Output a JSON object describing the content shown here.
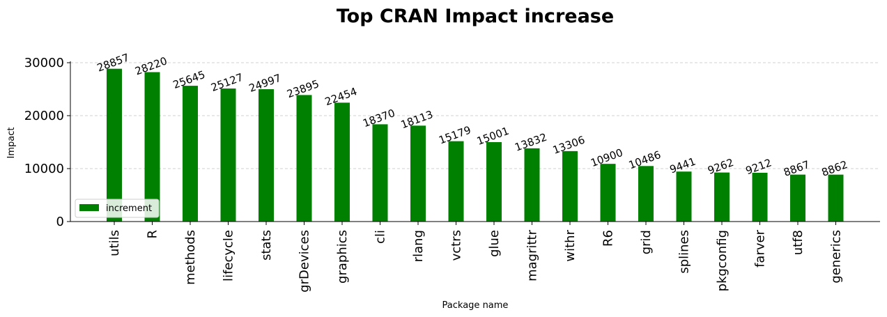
{
  "chart_data": {
    "type": "bar",
    "title": "Top CRAN Impact increase",
    "xlabel": "Package name",
    "ylabel": "Impact",
    "categories": [
      "utils",
      "R",
      "methods",
      "lifecycle",
      "stats",
      "grDevices",
      "graphics",
      "cli",
      "rlang",
      "vctrs",
      "glue",
      "magrittr",
      "withr",
      "R6",
      "grid",
      "splines",
      "pkgconfig",
      "farver",
      "utf8",
      "generics"
    ],
    "series": [
      {
        "name": "increment",
        "values": [
          28857,
          28220,
          25645,
          25127,
          24997,
          23895,
          22454,
          18370,
          18113,
          15179,
          15001,
          13832,
          13306,
          10900,
          10486,
          9441,
          9262,
          9212,
          8867,
          8862
        ]
      }
    ],
    "yticks": [
      0,
      10000,
      20000,
      30000
    ],
    "ylim": [
      0,
      30300
    ],
    "grid": "y-dashed",
    "legend": "lower-left",
    "bar_color": "#008000"
  }
}
